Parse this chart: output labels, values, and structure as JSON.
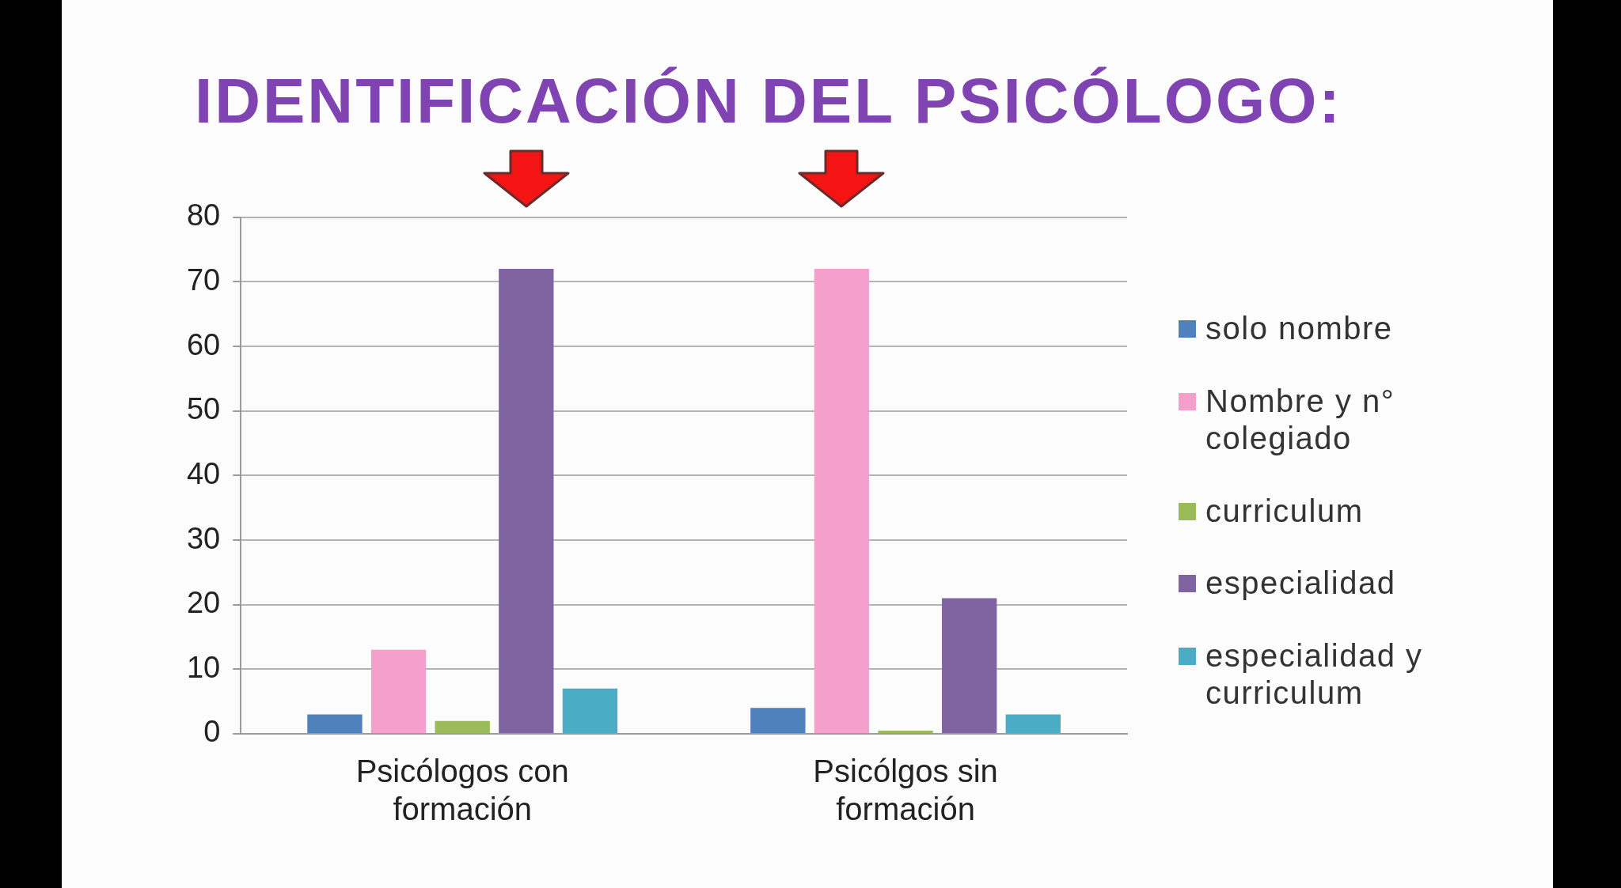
{
  "chart_data": {
    "type": "bar",
    "title": "IDENTIFICACIÓN DEL PSICÓLOGO:",
    "categories": [
      "Psicólogos con formación",
      "Psicólgos sin formación"
    ],
    "series": [
      {
        "name": "solo nombre",
        "color": "#4f81bd",
        "values": [
          3,
          4
        ]
      },
      {
        "name": "Nombre y n° colegiado",
        "color": "#f59fcd",
        "values": [
          13,
          72
        ]
      },
      {
        "name": "curriculum",
        "color": "#9bbb59",
        "values": [
          2,
          0.5
        ]
      },
      {
        "name": "especialidad",
        "color": "#8064a2",
        "values": [
          72,
          21
        ]
      },
      {
        "name": "especialidad y curriculum",
        "color": "#4bacc6",
        "values": [
          7,
          3
        ]
      }
    ],
    "ylim": [
      0,
      80
    ],
    "yticks": [
      0,
      10,
      20,
      30,
      40,
      50,
      60,
      70,
      80
    ],
    "grid": "y",
    "legend": "right"
  }
}
